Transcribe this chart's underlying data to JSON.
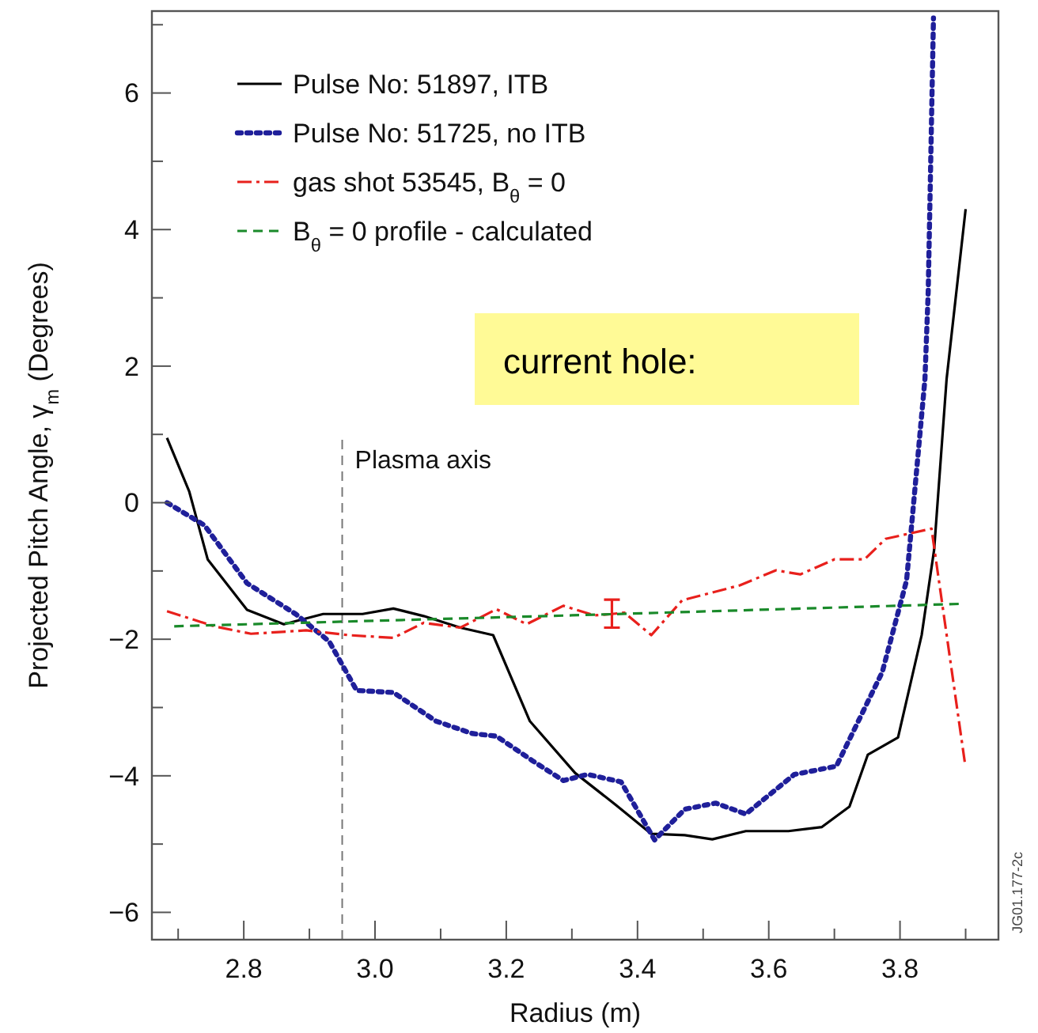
{
  "chart_data": {
    "type": "line",
    "xlabel": "Radius (m)",
    "ylabel": "Projected Pitch Angle, γ$_{m}$ (Degrees)",
    "xlim": [
      2.66,
      3.95
    ],
    "ylim": [
      -6.4,
      7.2
    ],
    "xticks": [
      {
        "value": 2.7,
        "label": null
      },
      {
        "value": 2.8,
        "label": "2.8"
      },
      {
        "value": 2.9,
        "label": null
      },
      {
        "value": 3.0,
        "label": "3.0"
      },
      {
        "value": 3.1,
        "label": null
      },
      {
        "value": 3.2,
        "label": "3.2"
      },
      {
        "value": 3.3,
        "label": null
      },
      {
        "value": 3.4,
        "label": "3.4"
      },
      {
        "value": 3.5,
        "label": null
      },
      {
        "value": 3.6,
        "label": "3.6"
      },
      {
        "value": 3.7,
        "label": null
      },
      {
        "value": 3.8,
        "label": "3.8"
      },
      {
        "value": 3.9,
        "label": null
      }
    ],
    "yticks": [
      {
        "value": -6,
        "label": "−6"
      },
      {
        "value": -5,
        "label": null
      },
      {
        "value": -4,
        "label": "−4"
      },
      {
        "value": -3,
        "label": null
      },
      {
        "value": -2,
        "label": "−2"
      },
      {
        "value": -1,
        "label": null
      },
      0,
      {
        "value": 1,
        "label": null
      },
      2,
      {
        "value": 3,
        "label": null
      },
      4,
      {
        "value": 5,
        "label": null
      },
      6,
      {
        "value": 7,
        "label": null
      }
    ],
    "grid": false,
    "legend": "top left",
    "marker": "none",
    "series": [
      {
        "name": "Pulse No: 51897, ITB",
        "color": "#000000",
        "line_style": "solid",
        "x": [
          2.683,
          2.717,
          2.745,
          2.805,
          2.861,
          2.921,
          2.981,
          3.028,
          3.074,
          3.13,
          3.18,
          3.236,
          3.305,
          3.37,
          3.421,
          3.472,
          3.514,
          3.565,
          3.63,
          3.681,
          3.723,
          3.751,
          3.797,
          3.833,
          3.852,
          3.871,
          3.9
        ],
        "values": [
          0.95,
          0.16,
          -0.83,
          -1.57,
          -1.78,
          -1.63,
          -1.63,
          -1.55,
          -1.66,
          -1.83,
          -1.94,
          -3.2,
          -3.96,
          -4.45,
          -4.85,
          -4.87,
          -4.93,
          -4.81,
          -4.81,
          -4.75,
          -4.45,
          -3.69,
          -3.44,
          -1.94,
          -0.69,
          1.81,
          4.3
        ]
      },
      {
        "name": "Pulse No: 51725, no ITB",
        "color": "#1f1f9a",
        "line_style": "dotted",
        "x": [
          2.683,
          2.74,
          2.805,
          2.879,
          2.93,
          2.972,
          3.028,
          3.093,
          3.148,
          3.185,
          3.24,
          3.287,
          3.324,
          3.375,
          3.426,
          3.472,
          3.519,
          3.565,
          3.639,
          3.703,
          3.773,
          3.81,
          3.838,
          3.843,
          3.851
        ],
        "values": [
          0.0,
          -0.33,
          -1.18,
          -1.63,
          -2.03,
          -2.75,
          -2.78,
          -3.2,
          -3.38,
          -3.42,
          -3.78,
          -4.07,
          -3.98,
          -4.09,
          -4.94,
          -4.49,
          -4.4,
          -4.56,
          -3.98,
          -3.86,
          -2.48,
          -1.14,
          1.81,
          3.1,
          7.1
        ]
      },
      {
        "name": "gas shot 53545, B$_{θ}$ = 0",
        "color": "#e8201c",
        "line_style": "dashdot",
        "x": [
          2.683,
          2.755,
          2.811,
          2.895,
          2.96,
          3.028,
          3.074,
          3.13,
          3.185,
          3.231,
          3.287,
          3.334,
          3.361,
          3.38,
          3.421,
          3.468,
          3.556,
          3.611,
          3.648,
          3.7,
          3.746,
          3.778,
          3.848,
          3.899
        ],
        "values": [
          -1.59,
          -1.81,
          -1.92,
          -1.87,
          -1.94,
          -1.98,
          -1.76,
          -1.83,
          -1.56,
          -1.78,
          -1.51,
          -1.65,
          -1.63,
          -1.61,
          -1.94,
          -1.43,
          -1.21,
          -0.99,
          -1.05,
          -0.83,
          -0.83,
          -0.53,
          -0.38,
          -3.82
        ],
        "errors": [
          null,
          null,
          null,
          null,
          null,
          null,
          null,
          null,
          null,
          null,
          null,
          null,
          [
            -1.83,
            -1.42
          ],
          null,
          null,
          null,
          null,
          null,
          null,
          null,
          null,
          null,
          null,
          null
        ]
      },
      {
        "name": "B$_{θ}$ = 0 profile - calculated",
        "color": "#1a8a2a",
        "line_style": "dashed",
        "x": [
          2.694,
          3.3,
          3.899
        ],
        "values": [
          -1.81,
          -1.65,
          -1.48
        ]
      }
    ],
    "ref_lines": [
      {
        "axis": "x",
        "value": 2.95,
        "label": "Plasma axis",
        "color": "#777777",
        "line_style": "dashed"
      }
    ],
    "annotations": [
      "current hole:",
      "JG01.177-2c"
    ]
  }
}
